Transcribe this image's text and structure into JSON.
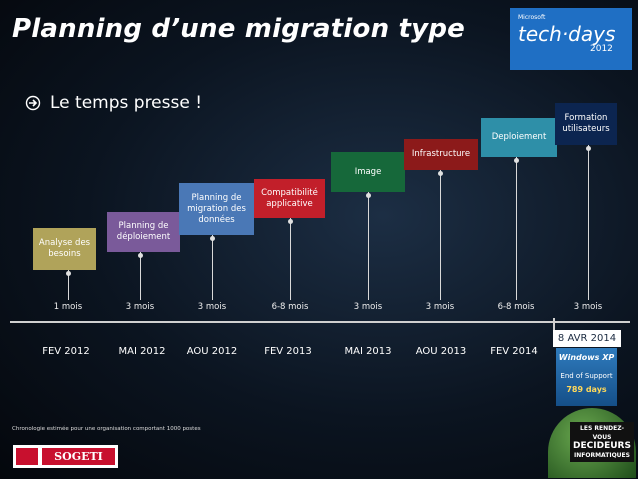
{
  "header": {
    "title": "Planning d’une migration type",
    "bullet": "Le temps presse !"
  },
  "logo": {
    "brand": "Microsoft",
    "name": "tech·days",
    "year": "2012"
  },
  "phases": [
    {
      "label": "Analyse des besoins",
      "duration": "1 mois"
    },
    {
      "label": "Planning de déploiement",
      "duration": "3 mois"
    },
    {
      "label": "Planning de migration des données",
      "duration": "3 mois"
    },
    {
      "label": "Compatibilité applicative",
      "duration": "6-8 mois"
    },
    {
      "label": "Image",
      "duration": "3 mois"
    },
    {
      "label": "Infrastructure",
      "duration": "3 mois"
    },
    {
      "label": "Deploiement",
      "duration": "6-8 mois"
    },
    {
      "label": "Formation utilisateurs",
      "duration": "3 mois"
    }
  ],
  "dates": [
    "FEV 2012",
    "MAI 2012",
    "AOU 2012",
    "FEV 2013",
    "MAI 2013",
    "AOU 2013",
    "FEV 2014"
  ],
  "deadline": {
    "date": "8 AVR 2014",
    "product": "Windows XP",
    "status": "End of Support",
    "countdown": "789 days"
  },
  "footnote": "Chronologie estimée pour une organisation comportant 1000 postes",
  "company": "SOGETI",
  "badge": {
    "line1": "LES RENDEZ-VOUS",
    "line2": "DECIDEURS",
    "line3": "INFORMATIQUES"
  }
}
